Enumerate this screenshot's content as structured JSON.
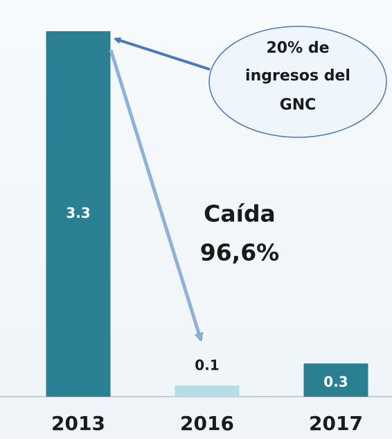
{
  "chart_data": {
    "type": "bar",
    "categories": [
      "2013",
      "2016",
      "2017"
    ],
    "values": [
      3.3,
      0.1,
      0.3
    ],
    "colors": [
      "#2b7f92",
      "#b5dde6",
      "#2b7f92"
    ],
    "annotations": [
      [
        "20% de",
        "ingresos del",
        "GNC"
      ],
      [
        "Caída",
        "96,6%"
      ]
    ]
  }
}
